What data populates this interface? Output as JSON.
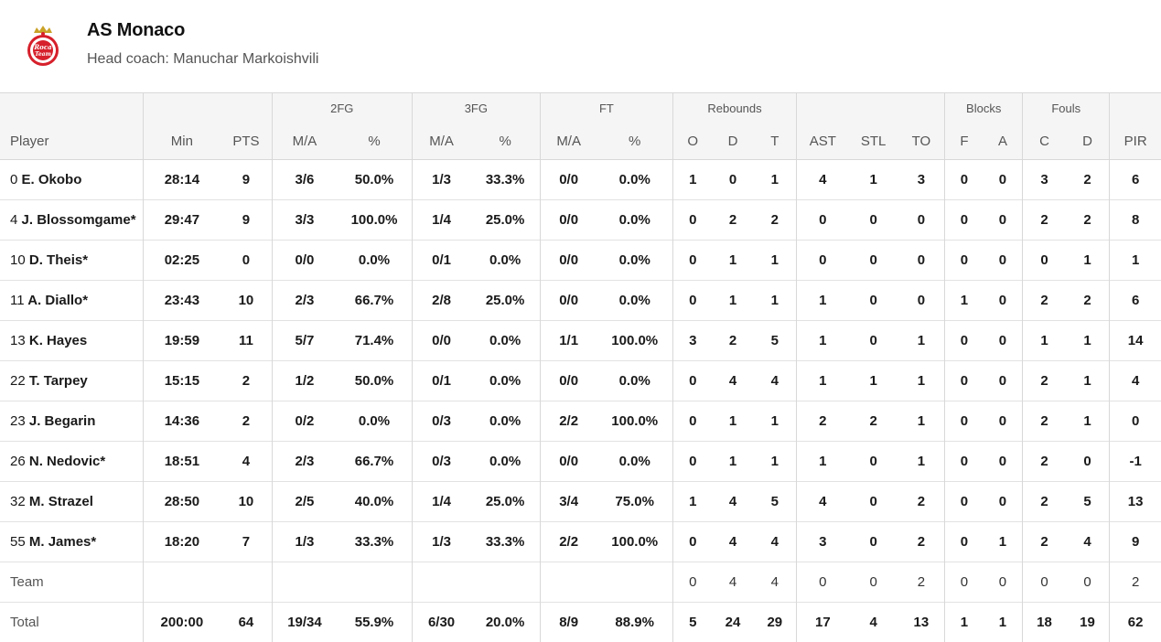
{
  "team": {
    "name": "AS Monaco",
    "coach": "Head coach: Manuchar Markoishvili",
    "logo_text": "Roca Team",
    "colors": {
      "logo_red": "#d6202b",
      "logo_gold": "#c9a227"
    }
  },
  "table": {
    "group_headers": {
      "fg2": "2FG",
      "fg3": "3FG",
      "ft": "FT",
      "rebounds": "Rebounds",
      "blocks": "Blocks",
      "fouls": "Fouls"
    },
    "columns": {
      "player": "Player",
      "min": "Min",
      "pts": "PTS",
      "fg2_ma": "M/A",
      "fg2_pct": "%",
      "fg3_ma": "M/A",
      "fg3_pct": "%",
      "ft_ma": "M/A",
      "ft_pct": "%",
      "reb_o": "O",
      "reb_d": "D",
      "reb_t": "T",
      "ast": "AST",
      "stl": "STL",
      "to": "TO",
      "blk_f": "F",
      "blk_a": "A",
      "foul_c": "C",
      "foul_d": "D",
      "pir": "PIR"
    },
    "rows": [
      {
        "num": "0",
        "name": "E. Okobo",
        "min": "28:14",
        "pts": "9",
        "fg2_ma": "3/6",
        "fg2_pct": "50.0%",
        "fg3_ma": "1/3",
        "fg3_pct": "33.3%",
        "ft_ma": "0/0",
        "ft_pct": "0.0%",
        "reb_o": "1",
        "reb_d": "0",
        "reb_t": "1",
        "ast": "4",
        "stl": "1",
        "to": "3",
        "blk_f": "0",
        "blk_a": "0",
        "foul_c": "3",
        "foul_d": "2",
        "pir": "6"
      },
      {
        "num": "4",
        "name": "J. Blossomgame*",
        "min": "29:47",
        "pts": "9",
        "fg2_ma": "3/3",
        "fg2_pct": "100.0%",
        "fg3_ma": "1/4",
        "fg3_pct": "25.0%",
        "ft_ma": "0/0",
        "ft_pct": "0.0%",
        "reb_o": "0",
        "reb_d": "2",
        "reb_t": "2",
        "ast": "0",
        "stl": "0",
        "to": "0",
        "blk_f": "0",
        "blk_a": "0",
        "foul_c": "2",
        "foul_d": "2",
        "pir": "8"
      },
      {
        "num": "10",
        "name": "D. Theis*",
        "min": "02:25",
        "pts": "0",
        "fg2_ma": "0/0",
        "fg2_pct": "0.0%",
        "fg3_ma": "0/1",
        "fg3_pct": "0.0%",
        "ft_ma": "0/0",
        "ft_pct": "0.0%",
        "reb_o": "0",
        "reb_d": "1",
        "reb_t": "1",
        "ast": "0",
        "stl": "0",
        "to": "0",
        "blk_f": "0",
        "blk_a": "0",
        "foul_c": "0",
        "foul_d": "1",
        "pir": "1"
      },
      {
        "num": "11",
        "name": "A. Diallo*",
        "min": "23:43",
        "pts": "10",
        "fg2_ma": "2/3",
        "fg2_pct": "66.7%",
        "fg3_ma": "2/8",
        "fg3_pct": "25.0%",
        "ft_ma": "0/0",
        "ft_pct": "0.0%",
        "reb_o": "0",
        "reb_d": "1",
        "reb_t": "1",
        "ast": "1",
        "stl": "0",
        "to": "0",
        "blk_f": "1",
        "blk_a": "0",
        "foul_c": "2",
        "foul_d": "2",
        "pir": "6"
      },
      {
        "num": "13",
        "name": "K. Hayes",
        "min": "19:59",
        "pts": "11",
        "fg2_ma": "5/7",
        "fg2_pct": "71.4%",
        "fg3_ma": "0/0",
        "fg3_pct": "0.0%",
        "ft_ma": "1/1",
        "ft_pct": "100.0%",
        "reb_o": "3",
        "reb_d": "2",
        "reb_t": "5",
        "ast": "1",
        "stl": "0",
        "to": "1",
        "blk_f": "0",
        "blk_a": "0",
        "foul_c": "1",
        "foul_d": "1",
        "pir": "14"
      },
      {
        "num": "22",
        "name": "T. Tarpey",
        "min": "15:15",
        "pts": "2",
        "fg2_ma": "1/2",
        "fg2_pct": "50.0%",
        "fg3_ma": "0/1",
        "fg3_pct": "0.0%",
        "ft_ma": "0/0",
        "ft_pct": "0.0%",
        "reb_o": "0",
        "reb_d": "4",
        "reb_t": "4",
        "ast": "1",
        "stl": "1",
        "to": "1",
        "blk_f": "0",
        "blk_a": "0",
        "foul_c": "2",
        "foul_d": "1",
        "pir": "4"
      },
      {
        "num": "23",
        "name": "J. Begarin",
        "min": "14:36",
        "pts": "2",
        "fg2_ma": "0/2",
        "fg2_pct": "0.0%",
        "fg3_ma": "0/3",
        "fg3_pct": "0.0%",
        "ft_ma": "2/2",
        "ft_pct": "100.0%",
        "reb_o": "0",
        "reb_d": "1",
        "reb_t": "1",
        "ast": "2",
        "stl": "2",
        "to": "1",
        "blk_f": "0",
        "blk_a": "0",
        "foul_c": "2",
        "foul_d": "1",
        "pir": "0"
      },
      {
        "num": "26",
        "name": "N. Nedovic*",
        "min": "18:51",
        "pts": "4",
        "fg2_ma": "2/3",
        "fg2_pct": "66.7%",
        "fg3_ma": "0/3",
        "fg3_pct": "0.0%",
        "ft_ma": "0/0",
        "ft_pct": "0.0%",
        "reb_o": "0",
        "reb_d": "1",
        "reb_t": "1",
        "ast": "1",
        "stl": "0",
        "to": "1",
        "blk_f": "0",
        "blk_a": "0",
        "foul_c": "2",
        "foul_d": "0",
        "pir": "-1"
      },
      {
        "num": "32",
        "name": "M. Strazel",
        "min": "28:50",
        "pts": "10",
        "fg2_ma": "2/5",
        "fg2_pct": "40.0%",
        "fg3_ma": "1/4",
        "fg3_pct": "25.0%",
        "ft_ma": "3/4",
        "ft_pct": "75.0%",
        "reb_o": "1",
        "reb_d": "4",
        "reb_t": "5",
        "ast": "4",
        "stl": "0",
        "to": "2",
        "blk_f": "0",
        "blk_a": "0",
        "foul_c": "2",
        "foul_d": "5",
        "pir": "13"
      },
      {
        "num": "55",
        "name": "M. James*",
        "min": "18:20",
        "pts": "7",
        "fg2_ma": "1/3",
        "fg2_pct": "33.3%",
        "fg3_ma": "1/3",
        "fg3_pct": "33.3%",
        "ft_ma": "2/2",
        "ft_pct": "100.0%",
        "reb_o": "0",
        "reb_d": "4",
        "reb_t": "4",
        "ast": "3",
        "stl": "0",
        "to": "2",
        "blk_f": "0",
        "blk_a": "1",
        "foul_c": "2",
        "foul_d": "4",
        "pir": "9"
      }
    ],
    "team_row": {
      "label": "Team",
      "min": "",
      "pts": "",
      "fg2_ma": "",
      "fg2_pct": "",
      "fg3_ma": "",
      "fg3_pct": "",
      "ft_ma": "",
      "ft_pct": "",
      "reb_o": "0",
      "reb_d": "4",
      "reb_t": "4",
      "ast": "0",
      "stl": "0",
      "to": "2",
      "blk_f": "0",
      "blk_a": "0",
      "foul_c": "0",
      "foul_d": "0",
      "pir": "2"
    },
    "total_row": {
      "label": "Total",
      "min": "200:00",
      "pts": "64",
      "fg2_ma": "19/34",
      "fg2_pct": "55.9%",
      "fg3_ma": "6/30",
      "fg3_pct": "20.0%",
      "ft_ma": "8/9",
      "ft_pct": "88.9%",
      "reb_o": "5",
      "reb_d": "24",
      "reb_t": "29",
      "ast": "17",
      "stl": "4",
      "to": "13",
      "blk_f": "1",
      "blk_a": "1",
      "foul_c": "18",
      "foul_d": "19",
      "pir": "62"
    }
  }
}
